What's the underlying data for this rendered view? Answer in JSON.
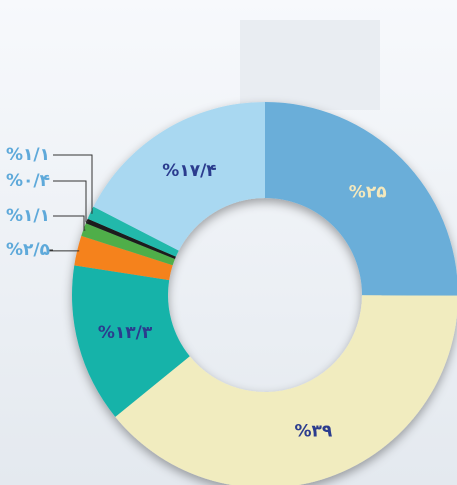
{
  "chart_data": {
    "type": "donut",
    "values": [
      25,
      39,
      13.3,
      2.5,
      1.1,
      0.4,
      1.1,
      17.4
    ],
    "value_labels": [
      "%۲۵",
      "%۳۹",
      "%۱۳/۳",
      "%۲/۵",
      "%۱/۱",
      "%۰/۴",
      "%۱/۱",
      "%۱۷/۴"
    ],
    "colors": [
      "#6aaed9",
      "#f1ecbf",
      "#14b3a9",
      "#f5821f",
      "#4fae4a",
      "#1b1b1b",
      "#20b9ab",
      "#a9d8f1"
    ],
    "label_color": "#2b3c8e",
    "first_label_color": "#f3e8bd",
    "outside_label_color": "#5ea9da"
  }
}
